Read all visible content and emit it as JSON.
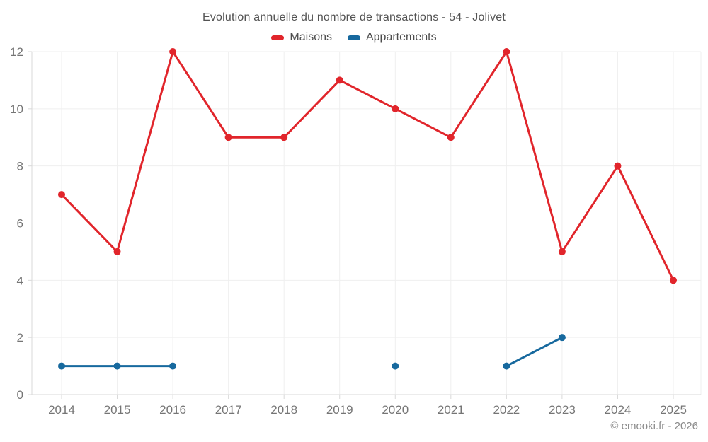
{
  "title": "Evolution annuelle du nombre de transactions - 54 - Jolivet",
  "footer": {
    "copyright": "© emooki.fr - 2026"
  },
  "chart_data": {
    "type": "line",
    "title": "Evolution annuelle du nombre de transactions - 54 - Jolivet",
    "categories": [
      "2014",
      "2015",
      "2016",
      "2017",
      "2018",
      "2019",
      "2020",
      "2021",
      "2022",
      "2023",
      "2024",
      "2025"
    ],
    "series": [
      {
        "name": "Maisons",
        "color": "#e1252b",
        "values": [
          7,
          5,
          12,
          9,
          9,
          11,
          10,
          9,
          12,
          5,
          8,
          4
        ]
      },
      {
        "name": "Appartements",
        "color": "#17699e",
        "values": [
          1,
          1,
          1,
          null,
          null,
          null,
          1,
          null,
          1,
          2,
          null,
          null
        ]
      }
    ],
    "xlabel": "",
    "ylabel": "",
    "ylim": [
      0,
      12
    ],
    "ytick_step": 2,
    "grid": true,
    "legend_position": "top",
    "axis_color": "#d9d9d9",
    "grid_color": "#efefef",
    "tick_label_color": "#757575"
  }
}
